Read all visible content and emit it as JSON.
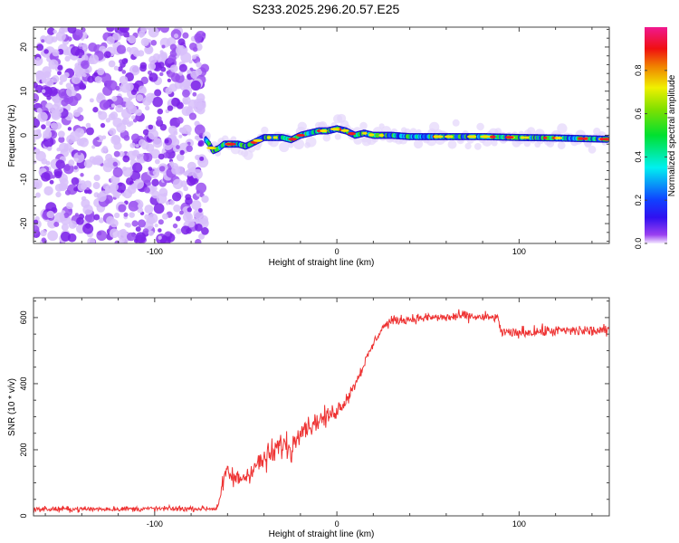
{
  "title": "S233.2025.296.20.57.E25",
  "chart_data": [
    {
      "type": "heatmap",
      "xlabel": "Height of straight line (km)",
      "ylabel": "Frequency (Hz)",
      "xlim": [
        -166.5,
        149.5
      ],
      "ylim": [
        -24.5,
        24.5
      ],
      "xticks": [
        -100,
        0,
        100
      ],
      "yticks": [
        -20,
        -10,
        0,
        10,
        20
      ],
      "noise_region_x": [
        -166.5,
        -72
      ],
      "ridge": {
        "x": [
          -72,
          -70,
          -68,
          -65,
          -62,
          -58,
          -54,
          -50,
          -45,
          -40,
          -35,
          -30,
          -25,
          -20,
          -15,
          -10,
          -5,
          0,
          5,
          10,
          15,
          20,
          30,
          40,
          60,
          80,
          100,
          120,
          149
        ],
        "y": [
          -1,
          -2,
          -3.5,
          -3,
          -2,
          -2,
          -2,
          -2.5,
          -1.5,
          -0.5,
          -0.5,
          -0.5,
          -1,
          0,
          0.5,
          1,
          1,
          1.5,
          1,
          0,
          0.5,
          0,
          0,
          -0.3,
          -0.3,
          -0.3,
          -0.5,
          -0.6,
          -0.9
        ]
      },
      "colorbar": {
        "label": "Normalized spectral amplitude",
        "ticks": [
          "0.0",
          "0.2",
          "0.4",
          "0.6",
          "0.8"
        ],
        "range": [
          0,
          1
        ]
      }
    },
    {
      "type": "line",
      "xlabel": "Height of straight line (km)",
      "ylabel": "SNR (10 * v/v)",
      "xlim": [
        -166.5,
        149.5
      ],
      "ylim": [
        0,
        660
      ],
      "xticks": [
        -100,
        0,
        100
      ],
      "yticks": [
        0,
        200,
        400,
        600
      ],
      "color": "#ee3333",
      "series": [
        {
          "name": "SNR",
          "x": [
            -166.5,
            -66,
            -64,
            -61,
            -55,
            -50,
            -45,
            -40,
            -35,
            -30,
            -25,
            -20,
            -15,
            -10,
            -5,
            0,
            5,
            10,
            15,
            20,
            25,
            30,
            40,
            50,
            60,
            70,
            80,
            88,
            90,
            95,
            100,
            120,
            149.5
          ],
          "y": [
            20,
            22,
            60,
            130,
            110,
            120,
            150,
            170,
            190,
            220,
            200,
            270,
            270,
            290,
            300,
            320,
            350,
            400,
            460,
            520,
            570,
            590,
            595,
            600,
            600,
            605,
            600,
            600,
            560,
            550,
            555,
            560,
            560
          ],
          "noise": [
            12,
            12,
            30,
            45,
            45,
            45,
            50,
            55,
            60,
            60,
            60,
            50,
            45,
            45,
            40,
            35,
            30,
            25,
            22,
            20,
            20,
            20,
            20,
            20,
            22,
            22,
            22,
            22,
            25,
            25,
            25,
            25,
            25
          ]
        }
      ]
    }
  ]
}
